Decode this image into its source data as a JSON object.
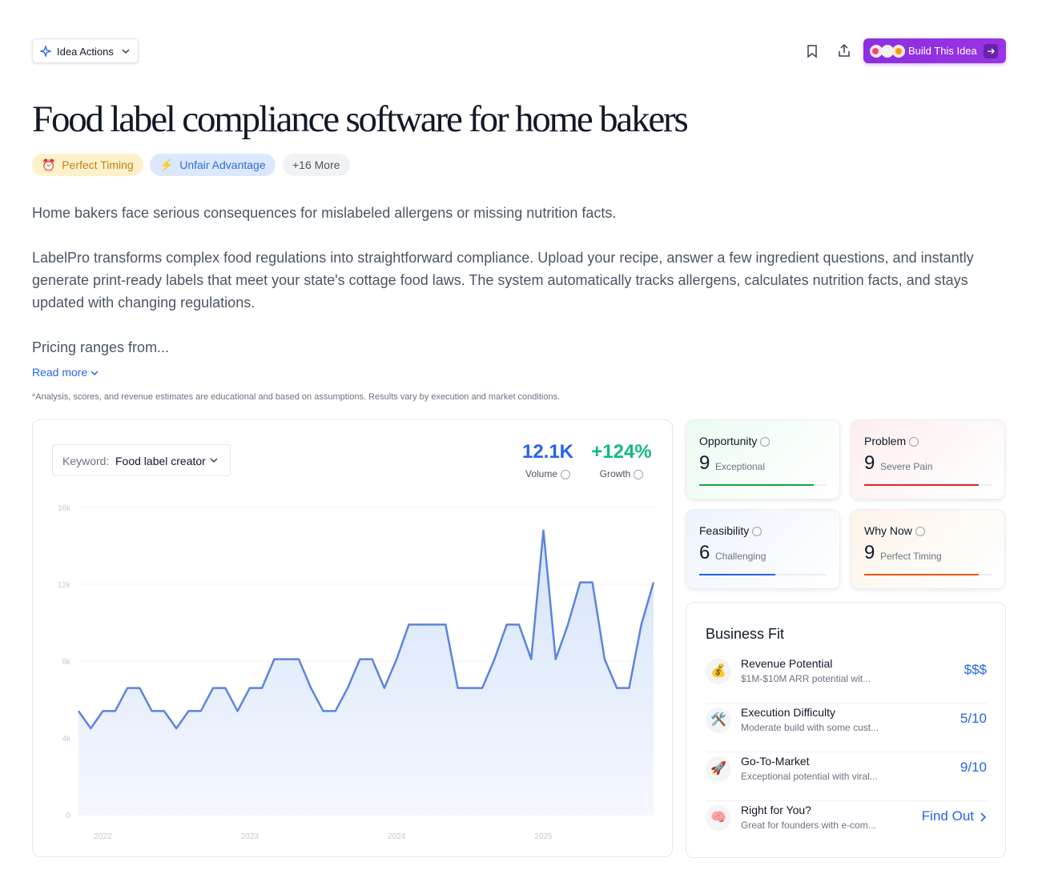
{
  "header": {
    "actions": "Idea Actions",
    "build": "Build This Idea"
  },
  "title": "Food label compliance software for home bakers",
  "tags": [
    {
      "icon": "⏰",
      "label": "Perfect Timing"
    },
    {
      "icon": "⚡",
      "label": "Unfair Advantage"
    },
    {
      "label": "+16 More"
    }
  ],
  "description": [
    "Home bakers face serious consequences for mislabeled allergens or missing nutrition facts.",
    "LabelPro transforms complex food regulations into straightforward compliance. Upload your recipe, answer a few ingredient questions, and instantly generate print-ready labels that meet your state's cottage food laws. The system automatically tracks allergens, calculates nutrition facts, and stays updated with changing regulations.",
    "Pricing ranges from..."
  ],
  "read_more": "Read more",
  "disclaimer": "*Analysis, scores, and revenue estimates are educational and based on assumptions. Results vary by execution and market conditions.",
  "chart_data": {
    "type": "line",
    "keyword_label": "Keyword:",
    "keyword": "Food label creator",
    "stats": [
      {
        "value": "12.1K",
        "label": "Volume",
        "color": "#2563eb"
      },
      {
        "value": "+124%",
        "label": "Growth",
        "color": "#10b981"
      }
    ],
    "categories": [
      null,
      null,
      "2022",
      null,
      null,
      null,
      null,
      null,
      null,
      null,
      null,
      null,
      null,
      null,
      "2023",
      null,
      null,
      null,
      null,
      null,
      null,
      null,
      null,
      null,
      null,
      null,
      "2024",
      null,
      null,
      null,
      null,
      null,
      null,
      null,
      null,
      null,
      null,
      null,
      "2025",
      null,
      null,
      null,
      null,
      null,
      null,
      null,
      null,
      null
    ],
    "values": [
      5400,
      4500,
      5400,
      5400,
      6600,
      6600,
      5400,
      5400,
      4500,
      5400,
      5400,
      6600,
      6600,
      5400,
      6600,
      6600,
      8100,
      8100,
      8100,
      6600,
      5400,
      5400,
      6600,
      8100,
      8100,
      6600,
      8100,
      9900,
      9900,
      9900,
      9900,
      6600,
      6600,
      6600,
      8100,
      9900,
      9900,
      8100,
      14800,
      8100,
      9900,
      12100,
      12100,
      8100,
      6600,
      6600,
      9900,
      12100
    ],
    "color": "#5b84e0",
    "ylim": [
      0,
      16000
    ],
    "yticks": [
      0,
      {
        "value": 4000,
        "label": "4k"
      },
      {
        "value": 8000,
        "label": "8k"
      },
      {
        "value": 12000,
        "label": "12k"
      },
      {
        "value": 16000,
        "label": "16k"
      }
    ],
    "grid": true
  },
  "scores": {
    "range": [
      0,
      10
    ],
    "items": [
      {
        "name": "Opportunity",
        "value": 9,
        "level": "Exceptional",
        "color": "#16a34a",
        "bg": "#ecfbf2"
      },
      {
        "name": "Problem",
        "value": 9,
        "level": "Severe Pain",
        "color": "#dc2626",
        "bg": "#fdeeee"
      },
      {
        "name": "Feasibility",
        "value": 6,
        "level": "Challenging",
        "color": "#2563eb",
        "bg": "#edf3fd"
      },
      {
        "name": "Why Now",
        "value": 9,
        "level": "Perfect Timing",
        "color": "#ea580c",
        "bg": "#fdf4ea"
      }
    ]
  },
  "business_fit": {
    "title": "Business Fit",
    "rows": [
      {
        "icon": "💰",
        "title": "Revenue Potential",
        "detail": "$1M-$10M ARR potential wit...",
        "value": "$$$"
      },
      {
        "icon": "🛠️",
        "title": "Execution Difficulty",
        "detail": "Moderate build with some cust...",
        "value": "5/10"
      },
      {
        "icon": "🚀",
        "title": "Go-To-Market",
        "detail": "Exceptional potential with viral...",
        "value": "9/10"
      },
      {
        "icon": "🧠",
        "title": "Right for You?",
        "detail": "Great for founders with e-com...",
        "value": "Find Out"
      }
    ]
  }
}
